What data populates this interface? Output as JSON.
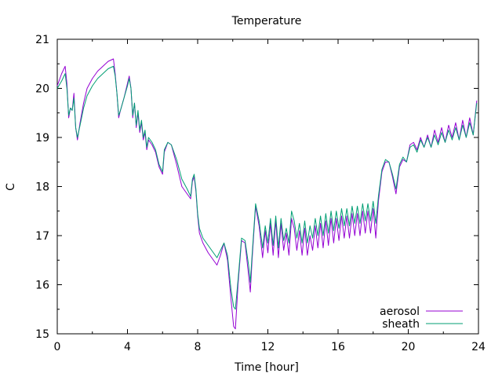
{
  "chart_data": {
    "type": "line",
    "title": "Temperature",
    "xlabel": "Time [hour]",
    "ylabel": "C",
    "xlim": [
      0,
      24
    ],
    "ylim": [
      15,
      21
    ],
    "xticks": [
      0,
      4,
      8,
      12,
      16,
      20,
      24
    ],
    "xtick_labels": [
      "0",
      "4",
      "8",
      "12",
      "16",
      "20",
      "24"
    ],
    "yticks": [
      15,
      16,
      17,
      18,
      19,
      20,
      21
    ],
    "ytick_labels": [
      "15",
      "16",
      "17",
      "18",
      "19",
      "20",
      "21"
    ],
    "grid": false,
    "legend_position": "bottom-right",
    "series": [
      {
        "name": "aerosol",
        "color": "#9400d3",
        "x": [
          0.0,
          0.25,
          0.45,
          0.55,
          0.65,
          0.75,
          0.85,
          0.95,
          1.05,
          1.15,
          1.3,
          1.5,
          1.7,
          2.0,
          2.3,
          2.6,
          2.9,
          3.2,
          3.3,
          3.4,
          3.5,
          3.6,
          3.8,
          4.0,
          4.1,
          4.2,
          4.3,
          4.4,
          4.5,
          4.6,
          4.7,
          4.8,
          4.9,
          5.0,
          5.1,
          5.2,
          5.4,
          5.6,
          5.8,
          6.0,
          6.1,
          6.3,
          6.5,
          6.8,
          7.1,
          7.4,
          7.6,
          7.7,
          7.8,
          7.9,
          8.0,
          8.1,
          8.3,
          8.6,
          8.9,
          9.1,
          9.3,
          9.5,
          9.7,
          9.9,
          10.05,
          10.15,
          10.3,
          10.5,
          10.7,
          10.9,
          11.0,
          11.1,
          11.3,
          11.5,
          11.7,
          11.85,
          12.0,
          12.15,
          12.3,
          12.45,
          12.6,
          12.75,
          12.9,
          13.05,
          13.2,
          13.35,
          13.5,
          13.65,
          13.8,
          13.95,
          14.1,
          14.25,
          14.4,
          14.55,
          14.7,
          14.85,
          15.0,
          15.15,
          15.3,
          15.45,
          15.6,
          15.75,
          15.9,
          16.05,
          16.2,
          16.35,
          16.5,
          16.65,
          16.8,
          16.95,
          17.1,
          17.25,
          17.4,
          17.55,
          17.7,
          17.85,
          18.0,
          18.15,
          18.3,
          18.5,
          18.7,
          18.9,
          19.1,
          19.3,
          19.5,
          19.7,
          19.9,
          20.1,
          20.3,
          20.5,
          20.7,
          20.9,
          21.1,
          21.3,
          21.5,
          21.7,
          21.9,
          22.1,
          22.3,
          22.5,
          22.7,
          22.9,
          23.1,
          23.3,
          23.5,
          23.7,
          23.9
        ],
        "values": [
          20.05,
          20.3,
          20.45,
          20.1,
          19.4,
          19.6,
          19.55,
          19.9,
          19.2,
          18.95,
          19.3,
          19.7,
          20.0,
          20.2,
          20.35,
          20.45,
          20.55,
          20.6,
          20.3,
          19.9,
          19.4,
          19.55,
          19.8,
          20.1,
          20.25,
          20.0,
          19.4,
          19.7,
          19.2,
          19.5,
          19.1,
          19.3,
          18.95,
          19.1,
          18.75,
          18.95,
          18.85,
          18.7,
          18.4,
          18.25,
          18.7,
          18.9,
          18.85,
          18.45,
          18.0,
          17.85,
          17.75,
          18.1,
          18.2,
          17.9,
          17.4,
          17.05,
          16.85,
          16.65,
          16.5,
          16.4,
          16.6,
          16.85,
          16.5,
          15.7,
          15.15,
          15.1,
          16.0,
          16.9,
          16.85,
          16.2,
          15.85,
          16.5,
          17.6,
          17.2,
          16.55,
          17.1,
          16.65,
          17.25,
          16.6,
          17.3,
          16.55,
          17.25,
          16.7,
          17.05,
          16.6,
          17.35,
          17.15,
          16.7,
          17.1,
          16.6,
          17.15,
          16.6,
          17.0,
          16.7,
          17.2,
          16.75,
          17.25,
          16.75,
          17.3,
          16.8,
          17.35,
          16.85,
          17.35,
          16.9,
          17.4,
          16.95,
          17.4,
          16.95,
          17.45,
          17.0,
          17.45,
          17.0,
          17.5,
          17.05,
          17.5,
          17.05,
          17.55,
          16.95,
          17.7,
          18.3,
          18.5,
          18.5,
          18.2,
          17.85,
          18.4,
          18.55,
          18.5,
          18.85,
          18.9,
          18.75,
          19.0,
          18.8,
          19.05,
          18.8,
          19.15,
          18.9,
          19.2,
          18.9,
          19.25,
          19.0,
          19.3,
          18.95,
          19.35,
          19.0,
          19.4,
          19.05,
          19.75
        ]
      },
      {
        "name": "sheath",
        "color": "#009e73",
        "x": [
          0.0,
          0.25,
          0.45,
          0.55,
          0.65,
          0.75,
          0.85,
          0.95,
          1.05,
          1.15,
          1.3,
          1.5,
          1.7,
          2.0,
          2.3,
          2.6,
          2.9,
          3.2,
          3.3,
          3.4,
          3.5,
          3.6,
          3.8,
          4.0,
          4.1,
          4.2,
          4.3,
          4.4,
          4.5,
          4.6,
          4.7,
          4.8,
          4.9,
          5.0,
          5.1,
          5.2,
          5.4,
          5.6,
          5.8,
          6.0,
          6.1,
          6.3,
          6.5,
          6.8,
          7.1,
          7.4,
          7.6,
          7.7,
          7.8,
          7.9,
          8.0,
          8.1,
          8.3,
          8.6,
          8.9,
          9.1,
          9.3,
          9.5,
          9.7,
          9.9,
          10.05,
          10.15,
          10.3,
          10.5,
          10.7,
          10.9,
          11.0,
          11.1,
          11.3,
          11.5,
          11.7,
          11.85,
          12.0,
          12.15,
          12.3,
          12.45,
          12.6,
          12.75,
          12.9,
          13.05,
          13.2,
          13.35,
          13.5,
          13.65,
          13.8,
          13.95,
          14.1,
          14.25,
          14.4,
          14.55,
          14.7,
          14.85,
          15.0,
          15.15,
          15.3,
          15.45,
          15.6,
          15.75,
          15.9,
          16.05,
          16.2,
          16.35,
          16.5,
          16.65,
          16.8,
          16.95,
          17.1,
          17.25,
          17.4,
          17.55,
          17.7,
          17.85,
          18.0,
          18.15,
          18.3,
          18.5,
          18.7,
          18.9,
          19.1,
          19.3,
          19.5,
          19.7,
          19.9,
          20.1,
          20.3,
          20.5,
          20.7,
          20.9,
          21.1,
          21.3,
          21.5,
          21.7,
          21.9,
          22.1,
          22.3,
          22.5,
          22.7,
          22.9,
          23.1,
          23.3,
          23.5,
          23.7,
          23.9
        ],
        "values": [
          20.0,
          20.15,
          20.3,
          20.0,
          19.45,
          19.6,
          19.55,
          19.8,
          19.2,
          19.0,
          19.25,
          19.6,
          19.85,
          20.05,
          20.2,
          20.3,
          20.4,
          20.45,
          20.25,
          19.9,
          19.45,
          19.55,
          19.8,
          20.05,
          20.2,
          20.0,
          19.45,
          19.7,
          19.25,
          19.55,
          19.15,
          19.35,
          19.0,
          19.15,
          18.8,
          19.0,
          18.9,
          18.75,
          18.45,
          18.3,
          18.75,
          18.9,
          18.85,
          18.55,
          18.15,
          17.95,
          17.8,
          18.15,
          18.25,
          17.95,
          17.45,
          17.15,
          16.95,
          16.8,
          16.65,
          16.55,
          16.7,
          16.85,
          16.6,
          15.9,
          15.55,
          15.5,
          16.1,
          16.95,
          16.9,
          16.4,
          16.05,
          16.6,
          17.65,
          17.3,
          16.75,
          17.2,
          16.85,
          17.35,
          16.8,
          17.4,
          16.75,
          17.35,
          16.9,
          17.15,
          16.85,
          17.5,
          17.3,
          16.95,
          17.25,
          16.85,
          17.3,
          16.85,
          17.2,
          16.95,
          17.35,
          17.0,
          17.4,
          17.0,
          17.45,
          17.05,
          17.5,
          17.1,
          17.5,
          17.15,
          17.55,
          17.2,
          17.55,
          17.2,
          17.6,
          17.25,
          17.6,
          17.25,
          17.65,
          17.3,
          17.65,
          17.3,
          17.7,
          17.25,
          17.8,
          18.35,
          18.55,
          18.5,
          18.25,
          17.95,
          18.45,
          18.6,
          18.5,
          18.8,
          18.85,
          18.7,
          18.95,
          18.8,
          19.0,
          18.8,
          19.05,
          18.85,
          19.1,
          18.9,
          19.15,
          18.95,
          19.2,
          18.95,
          19.25,
          19.0,
          19.3,
          19.05,
          19.7
        ]
      }
    ]
  }
}
